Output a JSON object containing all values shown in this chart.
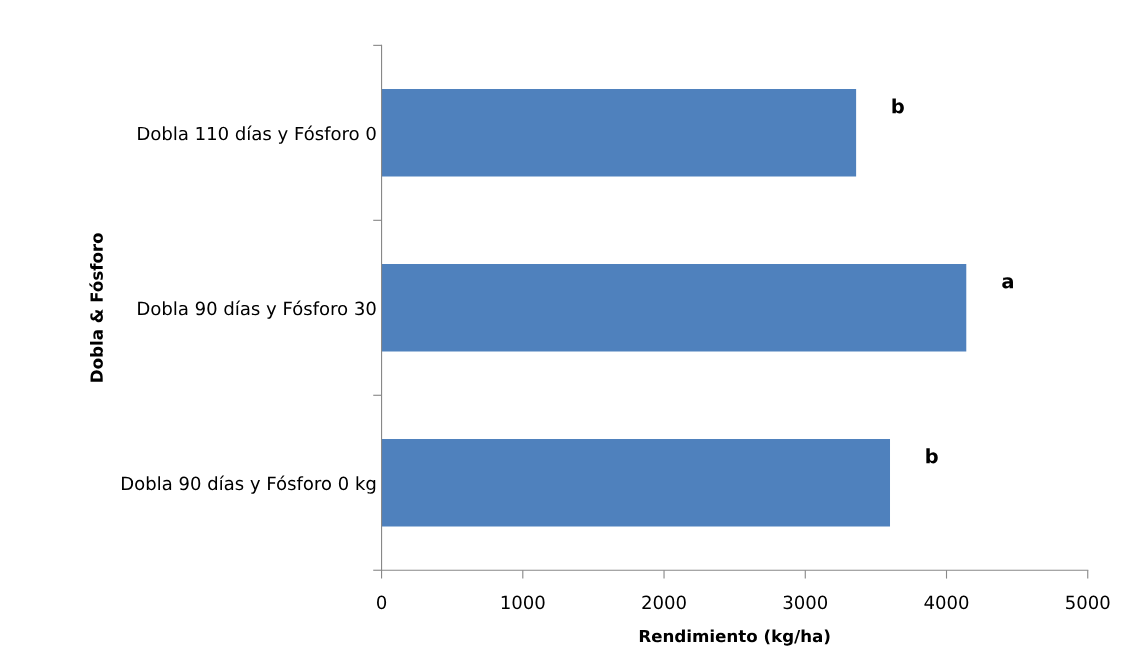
{
  "chart_data": {
    "type": "bar",
    "orientation": "horizontal",
    "xlabel": "Rendimiento (kg/ha)",
    "ylabel": "Dobla & Fósforo",
    "categories": [
      "Dobla 110 días y Fósforo 0",
      "Dobla 90 días y Fósforo 30",
      "Dobla 90 días y Fósforo 0 kg"
    ],
    "values": [
      3360,
      4140,
      3600
    ],
    "color": "#4f81bd",
    "xlim": [
      0,
      5000
    ],
    "xticks": [
      0,
      1000,
      2000,
      3000,
      4000,
      5000
    ],
    "grid": false,
    "legend": false,
    "annotations": [
      {
        "text": "b",
        "x": 3360,
        "y": "Dobla 110 días y Fósforo 0"
      },
      {
        "text": "a",
        "x": 4140,
        "y": "Dobla 90 días y Fósforo 30"
      },
      {
        "text": "b",
        "x": 3600,
        "y": "Dobla 90 días y Fósforo 0 kg"
      }
    ]
  }
}
